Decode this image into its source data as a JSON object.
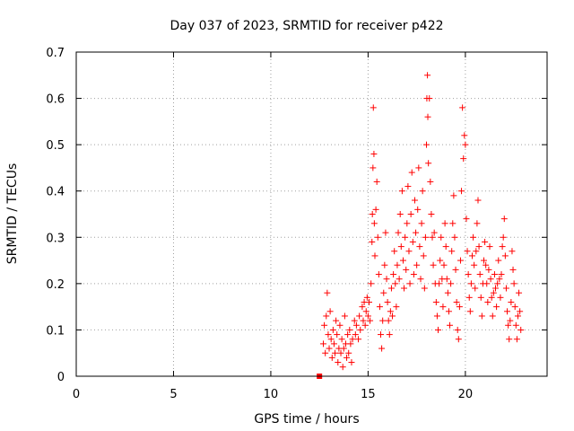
{
  "chart_data": {
    "type": "scatter",
    "title": "Day 037 of 2023, SRMTID for receiver p422",
    "xlabel": "GPS time / hours",
    "ylabel": "SRMTID / TECUs",
    "xlim": [
      0,
      24.2
    ],
    "ylim": [
      0,
      0.7
    ],
    "xticks": [
      0,
      5,
      10,
      15,
      20
    ],
    "yticks": [
      0,
      0.1,
      0.2,
      0.3,
      0.4,
      0.5,
      0.6,
      0.7
    ],
    "xtick_labels": [
      "0",
      "5",
      "10",
      "15",
      "20"
    ],
    "ytick_labels": [
      "0",
      "0.1",
      "0.2",
      "0.3",
      "0.4",
      "0.5",
      "0.6",
      "0.7"
    ],
    "grid": true,
    "marker": "+",
    "series_color": "#ff0000",
    "series": [
      {
        "name": "SRMTID",
        "points": [
          [
            12.5,
            0.0
          ],
          [
            12.7,
            0.07
          ],
          [
            12.75,
            0.11
          ],
          [
            12.8,
            0.05
          ],
          [
            12.85,
            0.13
          ],
          [
            12.9,
            0.18
          ],
          [
            12.95,
            0.09
          ],
          [
            13.0,
            0.06
          ],
          [
            13.05,
            0.14
          ],
          [
            13.1,
            0.08
          ],
          [
            13.15,
            0.04
          ],
          [
            13.2,
            0.1
          ],
          [
            13.25,
            0.07
          ],
          [
            13.3,
            0.05
          ],
          [
            13.35,
            0.12
          ],
          [
            13.4,
            0.09
          ],
          [
            13.45,
            0.03
          ],
          [
            13.5,
            0.06
          ],
          [
            13.55,
            0.11
          ],
          [
            13.6,
            0.05
          ],
          [
            13.65,
            0.08
          ],
          [
            13.7,
            0.02
          ],
          [
            13.75,
            0.06
          ],
          [
            13.8,
            0.13
          ],
          [
            13.85,
            0.07
          ],
          [
            13.9,
            0.04
          ],
          [
            13.95,
            0.09
          ],
          [
            14.0,
            0.05
          ],
          [
            14.05,
            0.1
          ],
          [
            14.1,
            0.07
          ],
          [
            14.15,
            0.03
          ],
          [
            14.2,
            0.08
          ],
          [
            14.3,
            0.12
          ],
          [
            14.35,
            0.09
          ],
          [
            14.4,
            0.11
          ],
          [
            14.5,
            0.08
          ],
          [
            14.55,
            0.13
          ],
          [
            14.6,
            0.1
          ],
          [
            14.7,
            0.15
          ],
          [
            14.75,
            0.12
          ],
          [
            14.8,
            0.16
          ],
          [
            14.85,
            0.11
          ],
          [
            14.9,
            0.14
          ],
          [
            14.95,
            0.17
          ],
          [
            15.0,
            0.13
          ],
          [
            15.05,
            0.16
          ],
          [
            15.1,
            0.12
          ],
          [
            15.15,
            0.2
          ],
          [
            15.2,
            0.29
          ],
          [
            15.22,
            0.35
          ],
          [
            15.25,
            0.45
          ],
          [
            15.27,
            0.58
          ],
          [
            15.3,
            0.48
          ],
          [
            15.32,
            0.33
          ],
          [
            15.35,
            0.26
          ],
          [
            15.4,
            0.36
          ],
          [
            15.45,
            0.42
          ],
          [
            15.5,
            0.3
          ],
          [
            15.55,
            0.22
          ],
          [
            15.6,
            0.15
          ],
          [
            15.65,
            0.09
          ],
          [
            15.7,
            0.06
          ],
          [
            15.75,
            0.12
          ],
          [
            15.8,
            0.18
          ],
          [
            15.85,
            0.24
          ],
          [
            15.9,
            0.31
          ],
          [
            15.95,
            0.21
          ],
          [
            16.0,
            0.16
          ],
          [
            16.05,
            0.12
          ],
          [
            16.1,
            0.09
          ],
          [
            16.15,
            0.14
          ],
          [
            16.2,
            0.19
          ],
          [
            16.25,
            0.13
          ],
          [
            16.3,
            0.22
          ],
          [
            16.35,
            0.27
          ],
          [
            16.4,
            0.2
          ],
          [
            16.45,
            0.15
          ],
          [
            16.5,
            0.24
          ],
          [
            16.55,
            0.31
          ],
          [
            16.6,
            0.21
          ],
          [
            16.65,
            0.35
          ],
          [
            16.7,
            0.28
          ],
          [
            16.75,
            0.4
          ],
          [
            16.8,
            0.25
          ],
          [
            16.85,
            0.19
          ],
          [
            16.9,
            0.3
          ],
          [
            16.95,
            0.23
          ],
          [
            17.0,
            0.33
          ],
          [
            17.05,
            0.41
          ],
          [
            17.1,
            0.27
          ],
          [
            17.15,
            0.2
          ],
          [
            17.2,
            0.35
          ],
          [
            17.25,
            0.44
          ],
          [
            17.3,
            0.29
          ],
          [
            17.35,
            0.22
          ],
          [
            17.4,
            0.38
          ],
          [
            17.45,
            0.31
          ],
          [
            17.5,
            0.24
          ],
          [
            17.55,
            0.36
          ],
          [
            17.6,
            0.45
          ],
          [
            17.65,
            0.28
          ],
          [
            17.7,
            0.21
          ],
          [
            17.75,
            0.33
          ],
          [
            17.8,
            0.4
          ],
          [
            17.85,
            0.26
          ],
          [
            17.9,
            0.19
          ],
          [
            17.95,
            0.3
          ],
          [
            18.0,
            0.5
          ],
          [
            18.02,
            0.6
          ],
          [
            18.05,
            0.65
          ],
          [
            18.07,
            0.56
          ],
          [
            18.1,
            0.46
          ],
          [
            18.15,
            0.6
          ],
          [
            18.2,
            0.42
          ],
          [
            18.25,
            0.35
          ],
          [
            18.3,
            0.3
          ],
          [
            18.35,
            0.24
          ],
          [
            18.4,
            0.31
          ],
          [
            18.45,
            0.2
          ],
          [
            18.5,
            0.16
          ],
          [
            18.55,
            0.13
          ],
          [
            18.6,
            0.1
          ],
          [
            18.65,
            0.2
          ],
          [
            18.7,
            0.25
          ],
          [
            18.75,
            0.3
          ],
          [
            18.8,
            0.21
          ],
          [
            18.85,
            0.15
          ],
          [
            18.9,
            0.24
          ],
          [
            18.95,
            0.33
          ],
          [
            19.0,
            0.28
          ],
          [
            19.05,
            0.21
          ],
          [
            19.1,
            0.18
          ],
          [
            19.15,
            0.14
          ],
          [
            19.2,
            0.11
          ],
          [
            19.25,
            0.2
          ],
          [
            19.3,
            0.27
          ],
          [
            19.35,
            0.33
          ],
          [
            19.4,
            0.39
          ],
          [
            19.45,
            0.3
          ],
          [
            19.5,
            0.23
          ],
          [
            19.55,
            0.16
          ],
          [
            19.6,
            0.1
          ],
          [
            19.65,
            0.08
          ],
          [
            19.7,
            0.15
          ],
          [
            19.75,
            0.25
          ],
          [
            19.8,
            0.4
          ],
          [
            19.85,
            0.58
          ],
          [
            19.9,
            0.47
          ],
          [
            19.95,
            0.52
          ],
          [
            20.0,
            0.5
          ],
          [
            20.05,
            0.34
          ],
          [
            20.1,
            0.27
          ],
          [
            20.15,
            0.22
          ],
          [
            20.2,
            0.17
          ],
          [
            20.25,
            0.14
          ],
          [
            20.3,
            0.2
          ],
          [
            20.35,
            0.26
          ],
          [
            20.4,
            0.3
          ],
          [
            20.45,
            0.24
          ],
          [
            20.5,
            0.19
          ],
          [
            20.55,
            0.27
          ],
          [
            20.6,
            0.33
          ],
          [
            20.65,
            0.38
          ],
          [
            20.7,
            0.28
          ],
          [
            20.75,
            0.22
          ],
          [
            20.8,
            0.17
          ],
          [
            20.85,
            0.13
          ],
          [
            20.9,
            0.2
          ],
          [
            20.95,
            0.25
          ],
          [
            21.0,
            0.29
          ],
          [
            21.05,
            0.24
          ],
          [
            21.1,
            0.2
          ],
          [
            21.15,
            0.16
          ],
          [
            21.2,
            0.23
          ],
          [
            21.25,
            0.28
          ],
          [
            21.3,
            0.21
          ],
          [
            21.35,
            0.17
          ],
          [
            21.4,
            0.13
          ],
          [
            21.45,
            0.18
          ],
          [
            21.5,
            0.22
          ],
          [
            21.55,
            0.19
          ],
          [
            21.6,
            0.15
          ],
          [
            21.65,
            0.2
          ],
          [
            21.7,
            0.25
          ],
          [
            21.75,
            0.21
          ],
          [
            21.8,
            0.17
          ],
          [
            21.85,
            0.22
          ],
          [
            21.9,
            0.28
          ],
          [
            21.95,
            0.3
          ],
          [
            22.0,
            0.34
          ],
          [
            22.05,
            0.26
          ],
          [
            22.1,
            0.19
          ],
          [
            22.15,
            0.14
          ],
          [
            22.2,
            0.11
          ],
          [
            22.25,
            0.08
          ],
          [
            22.3,
            0.12
          ],
          [
            22.35,
            0.16
          ],
          [
            22.4,
            0.27
          ],
          [
            22.45,
            0.23
          ],
          [
            22.5,
            0.2
          ],
          [
            22.55,
            0.15
          ],
          [
            22.6,
            0.11
          ],
          [
            22.65,
            0.08
          ],
          [
            22.7,
            0.13
          ],
          [
            22.75,
            0.18
          ],
          [
            22.8,
            0.14
          ],
          [
            22.85,
            0.1
          ]
        ]
      }
    ]
  }
}
